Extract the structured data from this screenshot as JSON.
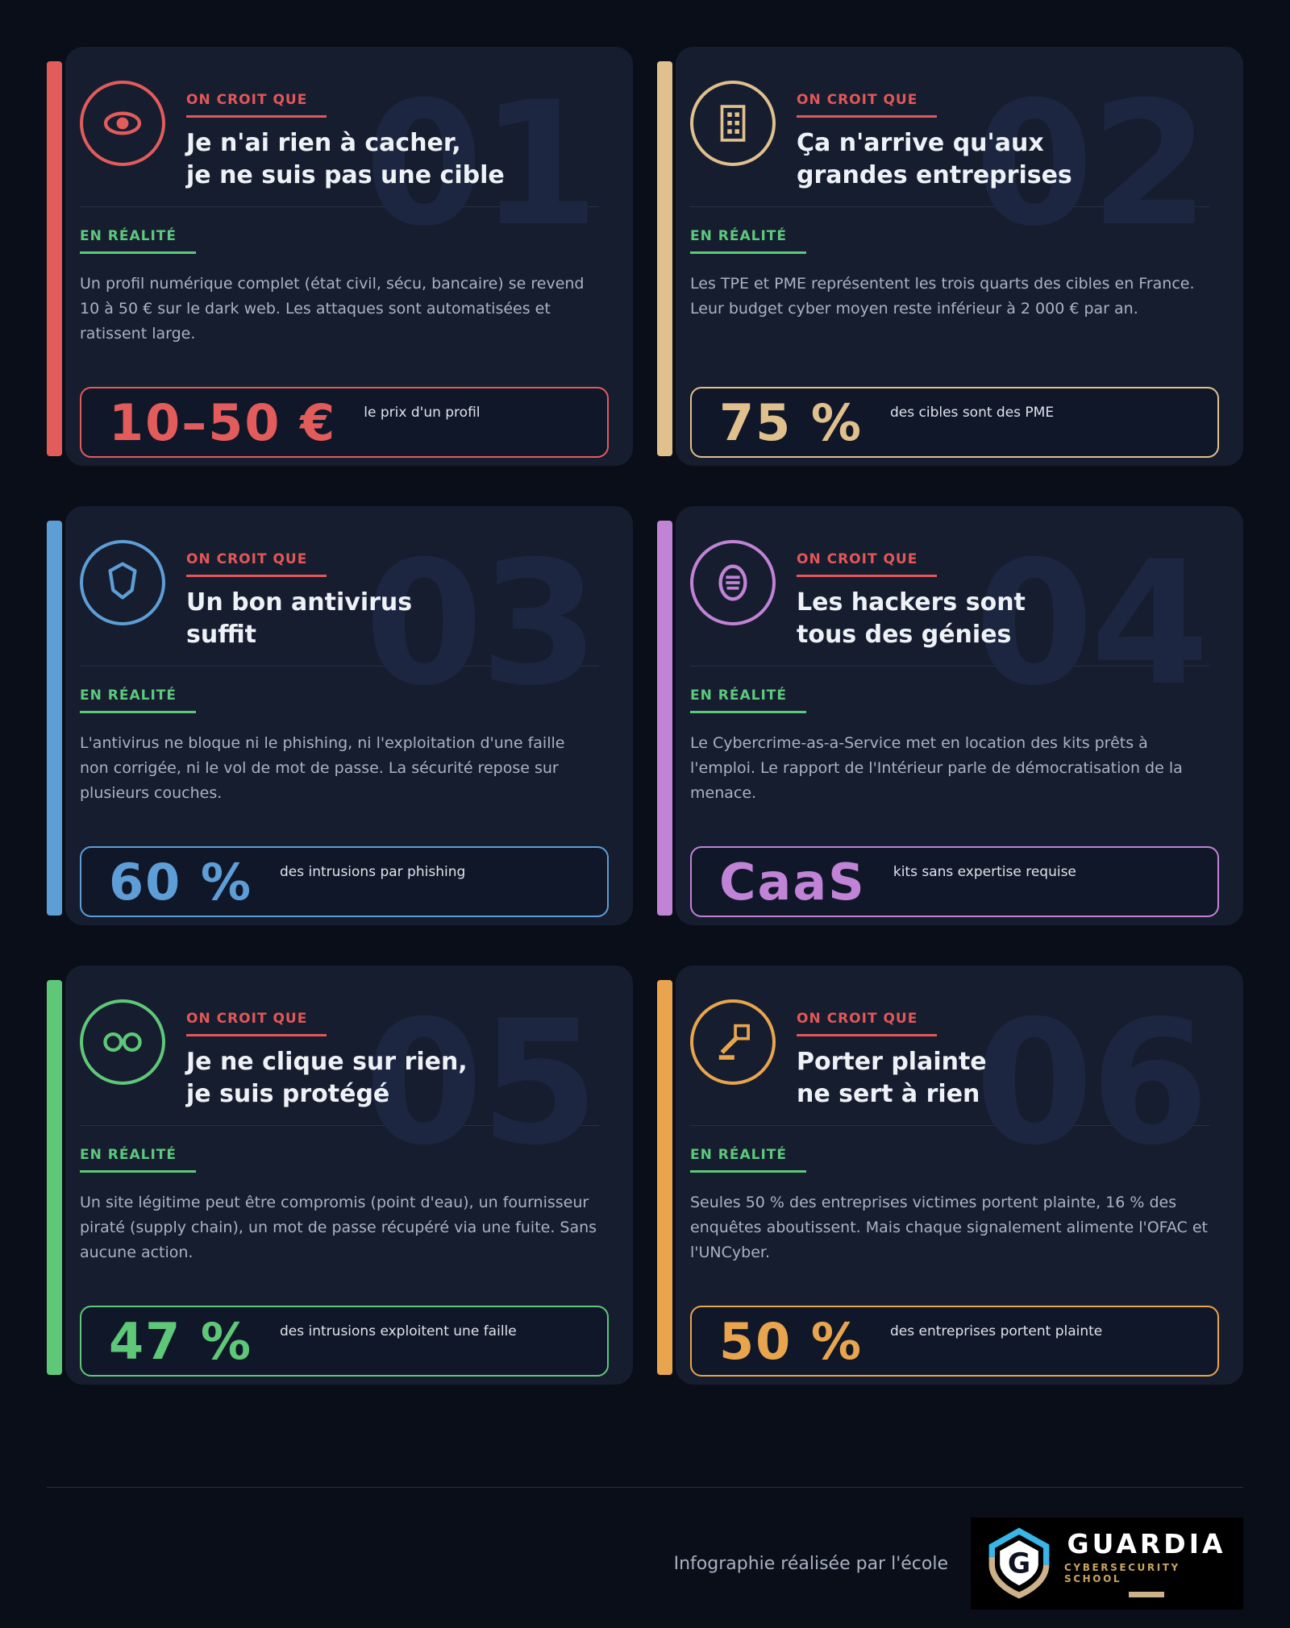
{
  "labels": {
    "myth": "ON CROIT QUE",
    "reality": "EN RÉALITÉ"
  },
  "cards": [
    {
      "number": "01",
      "accent": "#e25c5c",
      "icon": "eye-icon",
      "title_lines": [
        "Je n'ai rien à cacher,",
        "je ne suis pas une cible"
      ],
      "reality_text": "Un profil numérique complet (état civil, sécu, bancaire) se revend 10 à 50 € sur le dark web. Les attaques sont automatisées et ratissent large.",
      "stat_value": "10–50 €",
      "stat_label": "le prix d'un profil"
    },
    {
      "number": "02",
      "accent": "#e0c08c",
      "icon": "building-icon",
      "title_lines": [
        "Ça n'arrive qu'aux",
        "grandes entreprises"
      ],
      "reality_text": "Les TPE et PME représentent les trois quarts des cibles en France. Leur budget cyber moyen reste inférieur à 2 000 € par an.",
      "stat_value": "75 %",
      "stat_label": "des cibles sont des PME"
    },
    {
      "number": "03",
      "accent": "#5e9ed6",
      "icon": "shield-icon",
      "title_lines": [
        "Un bon antivirus",
        "suffit"
      ],
      "reality_text": "L'antivirus ne bloque ni le phishing, ni l'exploitation d'une faille non corrigée, ni le vol de mot de passe. La sécurité repose sur plusieurs couches.",
      "stat_value": "60 %",
      "stat_label": "des intrusions par phishing"
    },
    {
      "number": "04",
      "accent": "#c083d6",
      "icon": "mask-icon",
      "title_lines": [
        "Les hackers sont",
        "tous des génies"
      ],
      "reality_text": "Le Cybercrime-as-a-Service met en location des kits prêts à l'emploi. Le rapport de l'Intérieur parle de démocratisation de la menace.",
      "stat_value": "CaaS",
      "stat_label": "kits sans expertise requise"
    },
    {
      "number": "05",
      "accent": "#5fc878",
      "icon": "glasses-icon",
      "title_lines": [
        "Je ne clique sur rien,",
        "je suis protégé"
      ],
      "reality_text": "Un site légitime peut être compromis (point d'eau), un fournisseur piraté (supply chain), un mot de passe récupéré via une fuite. Sans aucune action.",
      "stat_value": "47 %",
      "stat_label": "des intrusions exploitent une faille"
    },
    {
      "number": "06",
      "accent": "#e8a54e",
      "icon": "gavel-icon",
      "title_lines": [
        "Porter plainte",
        "ne sert à rien"
      ],
      "reality_text": "Seules 50 % des entreprises victimes portent plainte, 16 % des enquêtes aboutissent. Mais chaque signalement alimente l'OFAC et l'UNCyber.",
      "stat_value": "50 %",
      "stat_label": "des entreprises portent plainte"
    }
  ],
  "footer": {
    "credit": "Infographie réalisée par l'école",
    "logo": {
      "name": "GUARDIA",
      "subtitle": "CYBERSECURITY SCHOOL"
    }
  },
  "colors": {
    "myth_label": "#e25757",
    "reality_label": "#5dc97c",
    "card_background": "#161d2f",
    "page_background": "#0a0e18"
  }
}
